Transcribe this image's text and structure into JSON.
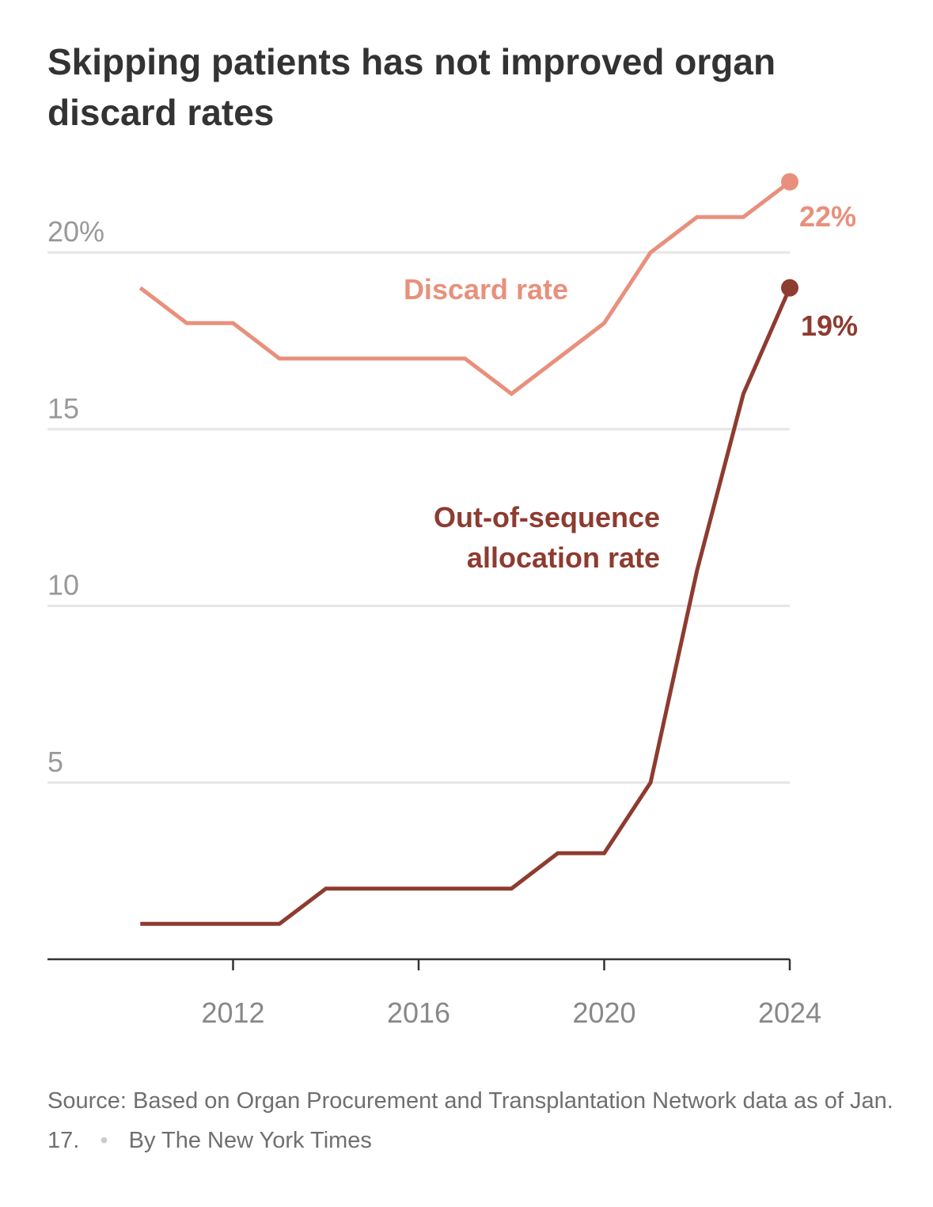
{
  "title": "Skipping patients has not improved organ discard rates",
  "source": {
    "text": "Source: Based on Organ Procurement and Transplantation Network data as of Jan. 17.",
    "separator": "•",
    "credit": "By The New York Times"
  },
  "chart_data": {
    "type": "line",
    "title": "Skipping patients has not improved organ discard rates",
    "xlabel": "",
    "ylabel": "",
    "x": [
      2010,
      2011,
      2012,
      2013,
      2014,
      2015,
      2016,
      2017,
      2018,
      2019,
      2020,
      2021,
      2022,
      2023,
      2024
    ],
    "xlim": [
      2008,
      2024
    ],
    "ylim": [
      0,
      20
    ],
    "grid": true,
    "x_ticks": [
      2012,
      2016,
      2020,
      2024
    ],
    "x_tick_labels": [
      "2012",
      "2016",
      "2020",
      "2024"
    ],
    "y_ticks": [
      5,
      10,
      15,
      20
    ],
    "y_tick_labels": [
      "5",
      "10",
      "15",
      "20%"
    ],
    "series": [
      {
        "name": "Discard rate",
        "color": "#e8907c",
        "values": [
          19,
          18,
          18,
          17,
          17,
          17,
          17,
          17,
          16,
          17,
          18,
          20,
          21,
          21,
          22
        ],
        "end_label": "22%"
      },
      {
        "name": "Out-of-sequence allocation rate",
        "label_lines": [
          "Out-of-sequence",
          "allocation rate"
        ],
        "color": "#8e3b30",
        "values": [
          1,
          1,
          1,
          1,
          2,
          2,
          2,
          2,
          2,
          3,
          3,
          5,
          11,
          16,
          19
        ],
        "end_label": "19%"
      }
    ]
  }
}
